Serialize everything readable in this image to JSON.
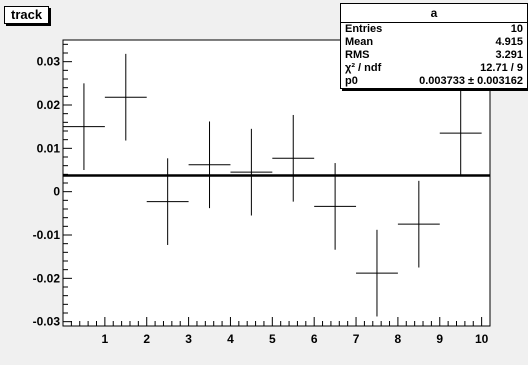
{
  "hist_title": "track",
  "stats": {
    "name": "a",
    "rows": [
      {
        "label": "Entries",
        "value": "10"
      },
      {
        "label": "Mean",
        "value": "4.915"
      },
      {
        "label": "RMS",
        "value": "3.291"
      },
      {
        "label": "χ² / ndf",
        "value": "12.71 / 9"
      },
      {
        "label": "p0",
        "value": "0.003733 ± 0.003162"
      }
    ]
  },
  "colors": {
    "background": "#f0f0f0",
    "frame": "#ffffff",
    "marks": "#000000"
  },
  "chart_data": {
    "type": "scatter",
    "title": "track",
    "xlabel": "",
    "ylabel": "",
    "xlim": [
      0,
      10.2
    ],
    "ylim": [
      -0.031,
      0.035
    ],
    "x_ticks": [
      1,
      2,
      3,
      4,
      5,
      6,
      7,
      8,
      9,
      10
    ],
    "y_ticks": [
      0.03,
      0.02,
      0.01,
      0,
      -0.01,
      -0.02,
      -0.03
    ],
    "y_tick_labels": [
      "0.03",
      "0.02",
      "0.01",
      "0",
      "-0.01",
      "-0.02",
      "-0.03"
    ],
    "points": [
      {
        "x": 0.5,
        "y": 0.015,
        "ex": 0.5,
        "ey": 0.01
      },
      {
        "x": 1.5,
        "y": 0.0218,
        "ex": 0.5,
        "ey": 0.01
      },
      {
        "x": 2.5,
        "y": -0.0023,
        "ex": 0.5,
        "ey": 0.01
      },
      {
        "x": 3.5,
        "y": 0.0062,
        "ex": 0.5,
        "ey": 0.01
      },
      {
        "x": 4.5,
        "y": 0.0045,
        "ex": 0.5,
        "ey": 0.01
      },
      {
        "x": 5.5,
        "y": 0.0077,
        "ex": 0.5,
        "ey": 0.01
      },
      {
        "x": 6.5,
        "y": -0.0034,
        "ex": 0.5,
        "ey": 0.01
      },
      {
        "x": 7.5,
        "y": -0.0188,
        "ex": 0.5,
        "ey": 0.01
      },
      {
        "x": 8.5,
        "y": -0.0075,
        "ex": 0.5,
        "ey": 0.01
      },
      {
        "x": 9.5,
        "y": 0.0135,
        "ex": 0.5,
        "ey": 0.01
      }
    ],
    "fit": {
      "type": "constant",
      "p0": 0.003733
    }
  }
}
